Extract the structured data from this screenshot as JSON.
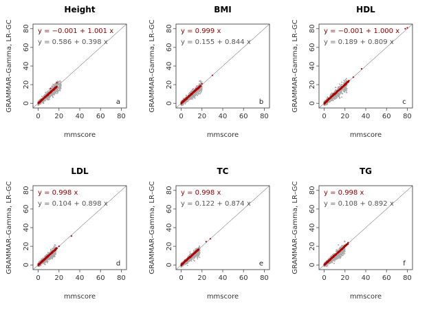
{
  "chart_data": [
    {
      "type": "scatter",
      "title": "Height",
      "panel_label": "a",
      "xlabel": "mmscore",
      "ylabel": "GRAMMAR–Gamma, LR–GC",
      "xlim": [
        -5,
        85
      ],
      "ylim": [
        -5,
        85
      ],
      "xticks": [
        "0",
        "20",
        "40",
        "60",
        "80"
      ],
      "yticks": [
        "0",
        "20",
        "40",
        "60",
        "80"
      ],
      "equations": [
        {
          "text": "y = −0.001 + 1.001 x",
          "color": "#8b0000",
          "intercept": -0.001,
          "slope": 1.001
        },
        {
          "text": "y = 0.586 + 0.398 x",
          "color": "#555555",
          "intercept": 0.586,
          "slope": 0.398
        }
      ],
      "reference_line": {
        "intercept": 0,
        "slope": 1
      },
      "cloud": {
        "grey_xmax": 22,
        "red_xmax": 18,
        "spread": 1.0
      },
      "outliers": [
        [
          18,
          22
        ],
        [
          12,
          16
        ]
      ]
    },
    {
      "type": "scatter",
      "title": "BMI",
      "panel_label": "b",
      "xlabel": "mmscore",
      "ylabel": "GRAMMAR–Gamma, LR–GC",
      "xlim": [
        -5,
        85
      ],
      "ylim": [
        -5,
        85
      ],
      "xticks": [
        "0",
        "20",
        "40",
        "60",
        "80"
      ],
      "yticks": [
        "0",
        "20",
        "40",
        "60",
        "80"
      ],
      "equations": [
        {
          "text": "y = 0.999 x",
          "color": "#8b0000",
          "intercept": 0,
          "slope": 0.999
        },
        {
          "text": "y = 0.155 + 0.844 x",
          "color": "#555555",
          "intercept": 0.155,
          "slope": 0.844
        }
      ],
      "reference_line": {
        "intercept": 0,
        "slope": 1
      },
      "cloud": {
        "grey_xmax": 20,
        "red_xmax": 19,
        "spread": 0.85
      },
      "outliers": [
        [
          30,
          30
        ],
        [
          20,
          21
        ]
      ]
    },
    {
      "type": "scatter",
      "title": "HDL",
      "panel_label": "c",
      "xlabel": "mmscore",
      "ylabel": "GRAMMAR–Gamma, LR–GC",
      "xlim": [
        -5,
        85
      ],
      "ylim": [
        -5,
        85
      ],
      "xticks": [
        "0",
        "20",
        "40",
        "60",
        "80"
      ],
      "yticks": [
        "0",
        "20",
        "40",
        "60",
        "80"
      ],
      "equations": [
        {
          "text": "y = −0.001 + 1.000 x",
          "color": "#8b0000",
          "intercept": -0.001,
          "slope": 1.0
        },
        {
          "text": "y = 0.189 + 0.809 x",
          "color": "#555555",
          "intercept": 0.189,
          "slope": 0.809
        }
      ],
      "reference_line": {
        "intercept": 0,
        "slope": 1
      },
      "cloud": {
        "grey_xmax": 22,
        "red_xmax": 24,
        "spread": 1.0
      },
      "outliers": [
        [
          28,
          28
        ],
        [
          36,
          37
        ],
        [
          80,
          81
        ],
        [
          78,
          80
        ],
        [
          22,
          23
        ]
      ]
    },
    {
      "type": "scatter",
      "title": "LDL",
      "panel_label": "d",
      "xlabel": "mmscore",
      "ylabel": "GRAMMAR–Gamma, LR–GC",
      "xlim": [
        -5,
        85
      ],
      "ylim": [
        -5,
        85
      ],
      "xticks": [
        "0",
        "20",
        "40",
        "60",
        "80"
      ],
      "yticks": [
        "0",
        "20",
        "40",
        "60",
        "80"
      ],
      "equations": [
        {
          "text": "y = 0.998 x",
          "color": "#8b0000",
          "intercept": 0,
          "slope": 0.998
        },
        {
          "text": "y = 0.104 + 0.898 x",
          "color": "#555555",
          "intercept": 0.104,
          "slope": 0.898
        }
      ],
      "reference_line": {
        "intercept": 0,
        "slope": 1
      },
      "cloud": {
        "grey_xmax": 17,
        "red_xmax": 18,
        "spread": 0.8
      },
      "outliers": [
        [
          32,
          31
        ],
        [
          20,
          20
        ]
      ]
    },
    {
      "type": "scatter",
      "title": "TC",
      "panel_label": "e",
      "xlabel": "mmscore",
      "ylabel": "GRAMMAR–Gamma, LR–GC",
      "xlim": [
        -5,
        85
      ],
      "ylim": [
        -5,
        85
      ],
      "xticks": [
        "0",
        "20",
        "40",
        "60",
        "80"
      ],
      "yticks": [
        "0",
        "20",
        "40",
        "60",
        "80"
      ],
      "equations": [
        {
          "text": "y = 0.998 x",
          "color": "#8b0000",
          "intercept": 0,
          "slope": 0.998
        },
        {
          "text": "y = 0.122 + 0.874 x",
          "color": "#555555",
          "intercept": 0.122,
          "slope": 0.874
        }
      ],
      "reference_line": {
        "intercept": 0,
        "slope": 1
      },
      "cloud": {
        "grey_xmax": 18,
        "red_xmax": 17,
        "spread": 0.8
      },
      "outliers": [
        [
          28,
          28
        ],
        [
          24,
          25
        ]
      ]
    },
    {
      "type": "scatter",
      "title": "TG",
      "panel_label": "f",
      "xlabel": "mmscore",
      "ylabel": "GRAMMAR–Gamma, LR–GC",
      "xlim": [
        -5,
        85
      ],
      "ylim": [
        -5,
        85
      ],
      "xticks": [
        "0",
        "20",
        "40",
        "60",
        "80"
      ],
      "yticks": [
        "0",
        "20",
        "40",
        "60",
        "80"
      ],
      "equations": [
        {
          "text": "y = 0.998 x",
          "color": "#8b0000",
          "intercept": 0,
          "slope": 0.998
        },
        {
          "text": "y = 0.108 + 0.892 x",
          "color": "#555555",
          "intercept": 0.108,
          "slope": 0.892
        }
      ],
      "reference_line": {
        "intercept": 0,
        "slope": 1
      },
      "cloud": {
        "grey_xmax": 20,
        "red_xmax": 23,
        "spread": 0.9
      },
      "outliers": [
        [
          23,
          24
        ],
        [
          20,
          21
        ]
      ]
    }
  ],
  "colors": {
    "grey_points": "#aaaaaa",
    "red_points": "#b00000",
    "reference_line": "#999999",
    "axis": "#444444"
  }
}
